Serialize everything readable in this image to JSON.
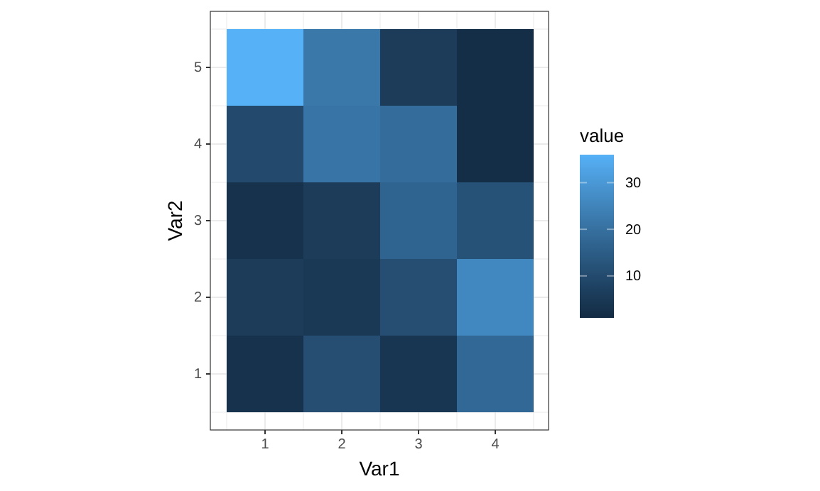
{
  "chart_data": {
    "type": "heatmap",
    "xlabel": "Var1",
    "ylabel": "Var2",
    "clabel": "value",
    "categories": [
      "1",
      "2",
      "3",
      "4"
    ],
    "y_categories": [
      "5",
      "4",
      "3",
      "2",
      "1"
    ],
    "cells": [
      [
        36,
        22,
        6,
        2
      ],
      [
        10,
        21,
        19,
        2
      ],
      [
        3,
        6,
        17,
        12
      ],
      [
        6,
        5,
        11,
        26
      ],
      [
        3,
        11,
        4,
        18
      ]
    ],
    "clim": [
      1,
      36
    ],
    "cticks": [
      10,
      20,
      30
    ],
    "grid": true
  }
}
